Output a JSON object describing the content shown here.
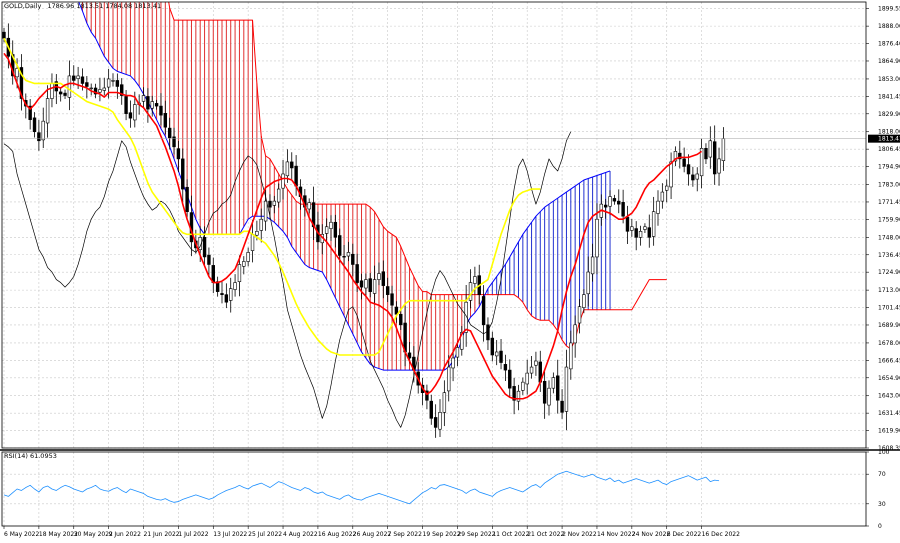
{
  "chart_data": {
    "type": "line",
    "header": {
      "symbol": "GOLD,Daily",
      "ohlc": "1786.96 1813.51 1784.08 1813.41"
    },
    "rsi_header": "RSI(14) 61.0953",
    "price_axis": {
      "ticks": [
        "1899.55",
        "1888.00",
        "1876.40",
        "1864.90",
        "1853.00",
        "1841.45",
        "1829.90",
        "1818.00",
        "1806.45",
        "1794.90",
        "1783.00",
        "1771.45",
        "1759.90",
        "1748.00",
        "1736.45",
        "1724.90",
        "1713.00",
        "1701.45",
        "1689.90",
        "1678.00",
        "1666.45",
        "1654.90",
        "1643.00",
        "1631.45",
        "1619.90",
        "1608.35"
      ],
      "ylim": [
        1608.35,
        1904
      ],
      "last_price_label": "1813.41",
      "last_price": 1813.41
    },
    "rsi_axis": {
      "ticks": [
        "100",
        "70",
        "30",
        "0"
      ],
      "ylim": [
        0,
        100
      ]
    },
    "date_axis": {
      "labels": [
        "6 May 2022",
        "18 May 2022",
        "30 May 2022",
        "9 Jun 2022",
        "21 Jun 2022",
        "1 Jul 2022",
        "13 Jul 2022",
        "25 Jul 2022",
        "4 Aug 2022",
        "16 Aug 2022",
        "26 Aug 2022",
        "7 Sep 2022",
        "19 Sep 2022",
        "29 Sep 2022",
        "11 Oct 2022",
        "21 Oct 2022",
        "2 Nov 2022",
        "14 Nov 2022",
        "24 Nov 2022",
        "6 Dec 2022",
        "16 Dec 2022"
      ],
      "label_index": [
        0,
        8,
        16,
        24,
        32,
        40,
        48,
        56,
        64,
        72,
        80,
        88,
        96,
        104,
        112,
        120,
        128,
        136,
        144,
        152,
        160
      ]
    },
    "series": [
      {
        "type": "candlestick",
        "closes": [
          1880,
          1868,
          1855,
          1860,
          1840,
          1835,
          1826,
          1818,
          1812,
          1825,
          1840,
          1850,
          1845,
          1843,
          1842,
          1855,
          1852,
          1855,
          1850,
          1848,
          1847,
          1843,
          1846,
          1847,
          1853,
          1852,
          1848,
          1842,
          1830,
          1827,
          1836,
          1837,
          1842,
          1833,
          1838,
          1835,
          1829,
          1821,
          1814,
          1808,
          1800,
          1780,
          1765,
          1745,
          1741,
          1748,
          1735,
          1730,
          1718,
          1712,
          1710,
          1705,
          1714,
          1718,
          1730,
          1732,
          1738,
          1750,
          1752,
          1760,
          1772,
          1768,
          1772,
          1780,
          1790,
          1798,
          1794,
          1782,
          1775,
          1768,
          1771,
          1755,
          1745,
          1750,
          1755,
          1758,
          1748,
          1736,
          1735,
          1738,
          1730,
          1718,
          1715,
          1720,
          1712,
          1720,
          1724,
          1716,
          1710,
          1703,
          1697,
          1690,
          1672,
          1668,
          1660,
          1650,
          1645,
          1640,
          1628,
          1622,
          1632,
          1645,
          1662,
          1668,
          1675,
          1685,
          1705,
          1718,
          1722,
          1710,
          1690,
          1680,
          1670,
          1672,
          1665,
          1660,
          1648,
          1640,
          1646,
          1652,
          1658,
          1662,
          1666,
          1652,
          1638,
          1648,
          1655,
          1640,
          1632,
          1662,
          1678,
          1690,
          1702,
          1710,
          1725,
          1735,
          1760,
          1770,
          1768,
          1775,
          1772,
          1770,
          1762,
          1752,
          1755,
          1748,
          1752,
          1755,
          1748,
          1765,
          1772,
          1778,
          1782,
          1798,
          1805,
          1800,
          1795,
          1790,
          1786,
          1790,
          1807,
          1800,
          1812,
          1790,
          1800,
          1813.41
        ]
      },
      {
        "name": "Tenkan-sen",
        "color": "#ff0000",
        "values": [
          1870,
          1866,
          1858,
          1850,
          1842,
          1836,
          1833,
          1836,
          1840,
          1843,
          1846,
          1847,
          1848,
          1847,
          1849,
          1850,
          1850,
          1849,
          1848,
          1847,
          1845,
          1844,
          1843,
          1841,
          1844,
          1844,
          1844,
          1843,
          1842,
          1842,
          1841,
          1836,
          1834,
          1830,
          1826,
          1822,
          1815,
          1808,
          1800,
          1792,
          1782,
          1770,
          1760,
          1752,
          1744,
          1736,
          1729,
          1722,
          1718,
          1718,
          1719,
          1721,
          1724,
          1727,
          1734,
          1742,
          1750,
          1758,
          1766,
          1774,
          1781,
          1783,
          1785,
          1786,
          1787,
          1787,
          1786,
          1782,
          1776,
          1769,
          1761,
          1756,
          1751,
          1748,
          1745,
          1741,
          1737,
          1733,
          1729,
          1725,
          1720,
          1716,
          1712,
          1709,
          1705,
          1704,
          1703,
          1701,
          1699,
          1695,
          1688,
          1680,
          1672,
          1666,
          1660,
          1654,
          1648,
          1644,
          1646,
          1650,
          1655,
          1662,
          1667,
          1672,
          1678,
          1684,
          1687,
          1686,
          1680,
          1674,
          1668,
          1662,
          1656,
          1652,
          1648,
          1644,
          1642,
          1641,
          1641,
          1641,
          1642,
          1644,
          1646,
          1652,
          1660,
          1668,
          1676,
          1686,
          1700,
          1712,
          1722,
          1730,
          1740,
          1750,
          1758,
          1762,
          1764,
          1766,
          1765,
          1764,
          1762,
          1760,
          1760,
          1762,
          1764,
          1768,
          1774,
          1780,
          1784,
          1786,
          1789,
          1792,
          1795,
          1797,
          1800,
          1801,
          1801,
          1801,
          1802,
          1803,
          1805
        ]
      },
      {
        "name": "Kijun-sen",
        "color": "#ffff00",
        "values": [
          1880,
          1874,
          1868,
          1862,
          1856,
          1852,
          1851,
          1850,
          1850,
          1850,
          1850,
          1850,
          1850,
          1850,
          1848,
          1846,
          1844,
          1842,
          1840,
          1838,
          1837,
          1836,
          1835,
          1834,
          1833,
          1831,
          1826,
          1822,
          1818,
          1814,
          1808,
          1800,
          1792,
          1784,
          1778,
          1774,
          1770,
          1766,
          1762,
          1758,
          1754,
          1751,
          1750,
          1750,
          1750,
          1750,
          1750,
          1750,
          1750,
          1750,
          1750,
          1750,
          1750,
          1750,
          1750,
          1752,
          1752,
          1750,
          1748,
          1746,
          1744,
          1740,
          1736,
          1731,
          1725,
          1718,
          1711,
          1704,
          1698,
          1693,
          1688,
          1684,
          1680,
          1677,
          1674,
          1672,
          1671,
          1670,
          1670,
          1670,
          1670,
          1670,
          1670,
          1670,
          1670,
          1670,
          1672,
          1678,
          1684,
          1690,
          1696,
          1700,
          1704,
          1706,
          1706,
          1706,
          1706,
          1706,
          1706,
          1706,
          1706,
          1706,
          1706,
          1706,
          1706,
          1706,
          1706,
          1710,
          1714,
          1716,
          1718,
          1720,
          1730,
          1740,
          1750,
          1758,
          1766,
          1772,
          1776,
          1778,
          1779,
          1780,
          1780,
          1780
        ]
      },
      {
        "name": "Chikou Span",
        "color": "#000000",
        "offset": -26,
        "values": [
          1810,
          1808,
          1805,
          1790,
          1780,
          1770,
          1760,
          1750,
          1740,
          1735,
          1728,
          1725,
          1720,
          1718,
          1715,
          1718,
          1722,
          1730,
          1740,
          1752,
          1760,
          1765,
          1768,
          1775,
          1785,
          1792,
          1802,
          1812,
          1808,
          1798,
          1790,
          1782,
          1775,
          1770,
          1766,
          1768,
          1772,
          1770,
          1766,
          1760,
          1752,
          1748,
          1744,
          1740,
          1738,
          1742,
          1750,
          1758,
          1764,
          1766,
          1770,
          1772,
          1776,
          1785,
          1792,
          1798,
          1802,
          1800,
          1796,
          1786,
          1775,
          1762,
          1748,
          1732,
          1718,
          1700,
          1690,
          1680,
          1670,
          1662,
          1655,
          1648,
          1638,
          1628,
          1636,
          1650,
          1666,
          1680,
          1690,
          1700,
          1702,
          1696,
          1686,
          1676,
          1666,
          1660,
          1654,
          1648,
          1640,
          1634,
          1627,
          1622,
          1630,
          1642,
          1656,
          1670,
          1685,
          1698,
          1710,
          1720,
          1726,
          1722,
          1716,
          1710,
          1704,
          1700,
          1696,
          1690,
          1688,
          1686,
          1684,
          1686,
          1692,
          1705,
          1720,
          1740,
          1760,
          1780,
          1795,
          1800,
          1792,
          1780,
          1770,
          1778,
          1790,
          1800,
          1795,
          1792,
          1800,
          1812,
          1818
        ]
      },
      {
        "name": "Senkou Span A",
        "color": "#ff0000",
        "values": [
          1918,
          1918,
          1918,
          1918,
          1918,
          1918,
          1918,
          1918,
          1918,
          1918,
          1918,
          1918,
          1918,
          1918,
          1918,
          1918,
          1918,
          1918,
          1918,
          1918,
          1918,
          1918,
          1918,
          1918,
          1918,
          1918,
          1918,
          1918,
          1918,
          1918,
          1918,
          1918,
          1918,
          1918,
          1918,
          1918,
          1918,
          1918,
          1900,
          1892,
          1892,
          1892,
          1892,
          1892,
          1892,
          1892,
          1892,
          1892,
          1892,
          1892,
          1892,
          1892,
          1892,
          1892,
          1892,
          1892,
          1892,
          1892,
          1850,
          1815,
          1802,
          1800,
          1795,
          1790,
          1785,
          1780,
          1776,
          1772,
          1770,
          1770,
          1770,
          1770,
          1770,
          1770,
          1770,
          1770,
          1770,
          1770,
          1770,
          1770,
          1770,
          1770,
          1770,
          1770,
          1768,
          1765,
          1760,
          1755,
          1752,
          1750,
          1748,
          1742,
          1735,
          1728,
          1722,
          1716,
          1712,
          1712,
          1710,
          1710,
          1710,
          1710,
          1710,
          1710,
          1710,
          1710,
          1710,
          1710,
          1710,
          1710,
          1710,
          1710,
          1710,
          1710,
          1710,
          1710,
          1710,
          1710,
          1708,
          1705,
          1700,
          1696,
          1694,
          1693,
          1693,
          1693,
          1690,
          1686,
          1680,
          1676,
          1674,
          1680,
          1692,
          1700,
          1700,
          1700,
          1700,
          1700,
          1700,
          1700,
          1700,
          1700,
          1700,
          1700,
          1700,
          1705,
          1710,
          1715,
          1720,
          1720,
          1720,
          1720,
          1720
        ]
      },
      {
        "name": "Senkou Span B",
        "color": "#0000ff",
        "values": [
          1918,
          1918,
          1918,
          1918,
          1918,
          1918,
          1918,
          1918,
          1918,
          1918,
          1918,
          1918,
          1918,
          1918,
          1918,
          1918,
          1912,
          1905,
          1898,
          1890,
          1884,
          1880,
          1874,
          1868,
          1864,
          1860,
          1858,
          1857,
          1856,
          1855,
          1852,
          1848,
          1843,
          1838,
          1832,
          1826,
          1820,
          1815,
          1808,
          1800,
          1792,
          1784,
          1776,
          1768,
          1760,
          1754,
          1750,
          1750,
          1750,
          1750,
          1750,
          1750,
          1750,
          1750,
          1750,
          1755,
          1760,
          1762,
          1762,
          1762,
          1762,
          1760,
          1758,
          1755,
          1752,
          1748,
          1742,
          1738,
          1734,
          1730,
          1728,
          1727,
          1726,
          1725,
          1720,
          1714,
          1708,
          1702,
          1696,
          1690,
          1684,
          1678,
          1672,
          1668,
          1664,
          1662,
          1661,
          1660,
          1660,
          1660,
          1660,
          1660,
          1660,
          1660,
          1660,
          1660,
          1660,
          1660,
          1660,
          1660,
          1660,
          1660,
          1662,
          1666,
          1672,
          1680,
          1690,
          1695,
          1698,
          1702,
          1708,
          1714,
          1718,
          1722,
          1726,
          1730,
          1735,
          1740,
          1745,
          1750,
          1754,
          1758,
          1762,
          1765,
          1768,
          1770,
          1772,
          1774,
          1776,
          1778,
          1780,
          1782,
          1784,
          1786,
          1787,
          1788,
          1789,
          1790,
          1791,
          1792
        ]
      },
      {
        "name": "RSI(14)",
        "color": "#1e90ff",
        "panel": "rsi",
        "values": [
          42,
          40,
          45,
          50,
          48,
          52,
          55,
          50,
          46,
          52,
          54,
          50,
          48,
          52,
          55,
          53,
          50,
          48,
          46,
          50,
          52,
          55,
          50,
          48,
          47,
          50,
          52,
          48,
          45,
          50,
          48,
          46,
          44,
          40,
          38,
          36,
          35,
          37,
          34,
          32,
          33,
          36,
          38,
          40,
          42,
          40,
          38,
          36,
          38,
          42,
          45,
          48,
          50,
          52,
          55,
          52,
          50,
          54,
          56,
          58,
          55,
          52,
          56,
          60,
          58,
          55,
          52,
          50,
          48,
          52,
          50,
          46,
          44,
          46,
          42,
          40,
          38,
          36,
          40,
          42,
          38,
          36,
          35,
          38,
          40,
          42,
          44,
          42,
          40,
          38,
          36,
          34,
          32,
          30,
          35,
          40,
          45,
          48,
          52,
          50,
          55,
          56,
          54,
          52,
          50,
          48,
          44,
          48,
          50,
          46,
          44,
          42,
          40,
          45,
          48,
          50,
          52,
          50,
          48,
          46,
          50,
          54,
          56,
          52,
          58,
          62,
          66,
          70,
          72,
          74,
          72,
          70,
          68,
          66,
          68,
          70,
          66,
          64,
          62,
          65,
          60,
          62,
          58,
          60,
          62,
          64,
          62,
          60,
          58,
          60,
          62,
          58,
          56,
          60,
          62,
          64,
          66,
          68,
          65,
          62,
          64,
          66,
          60,
          62,
          61.0953
        ]
      }
    ]
  }
}
